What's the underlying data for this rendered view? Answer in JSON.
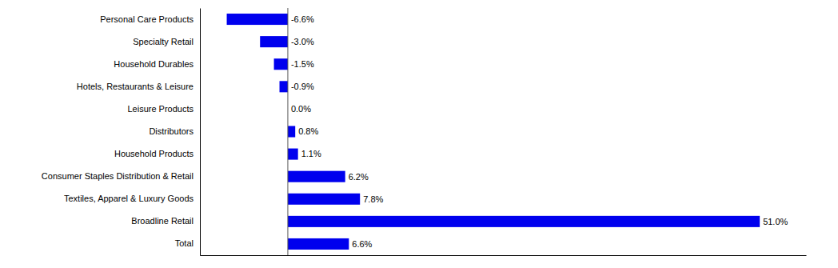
{
  "chart_data": {
    "type": "bar",
    "orientation": "horizontal",
    "categories": [
      "Personal Care Products",
      "Specialty Retail",
      "Household Durables",
      "Hotels, Restaurants & Leisure",
      "Leisure Products",
      "Distributors",
      "Household Products",
      "Consumer Staples Distribution & Retail",
      "Textiles, Apparel & Luxury Goods",
      "Broadline Retail",
      "Total"
    ],
    "values": [
      -6.6,
      -3.0,
      -1.5,
      -0.9,
      0.0,
      0.8,
      1.1,
      6.2,
      7.8,
      51.0,
      6.6
    ],
    "value_labels": [
      "-6.6%",
      "-3.0%",
      "-1.5%",
      "-0.9%",
      "0.0%",
      "0.8%",
      "1.1%",
      "6.2%",
      "7.8%",
      "51.0%",
      "6.6%"
    ],
    "data_labels": true,
    "color": "#0000EE",
    "xlim": [
      -9.5,
      56
    ],
    "tick_labels": "y",
    "grid": false
  }
}
